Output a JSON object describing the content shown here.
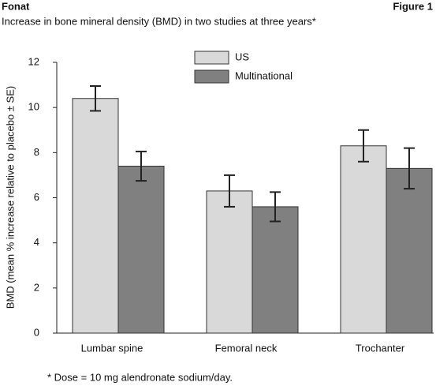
{
  "chart_data": {
    "type": "bar",
    "header": "Fonat",
    "figure_label": "Figure 1",
    "title": "Increase in bone mineral density (BMD) in two studies at three years*",
    "ylabel": "BMD (mean % increase relative to placebo ± SE)",
    "footnote": "* Dose = 10 mg alendronate sodium/day.",
    "categories": [
      "Lumbar spine",
      "Femoral neck",
      "Trochanter"
    ],
    "series": [
      {
        "name": "US",
        "color": "#d9d9d9",
        "values": [
          10.4,
          6.3,
          8.3
        ],
        "errors": [
          0.55,
          0.7,
          0.7
        ]
      },
      {
        "name": "Multinational",
        "color": "#808080",
        "values": [
          7.4,
          5.6,
          7.3
        ],
        "errors": [
          0.65,
          0.65,
          0.9
        ]
      }
    ],
    "ylim": [
      0,
      12
    ],
    "yticks": [
      0,
      2,
      4,
      6,
      8,
      10,
      12
    ],
    "legend": "top"
  }
}
